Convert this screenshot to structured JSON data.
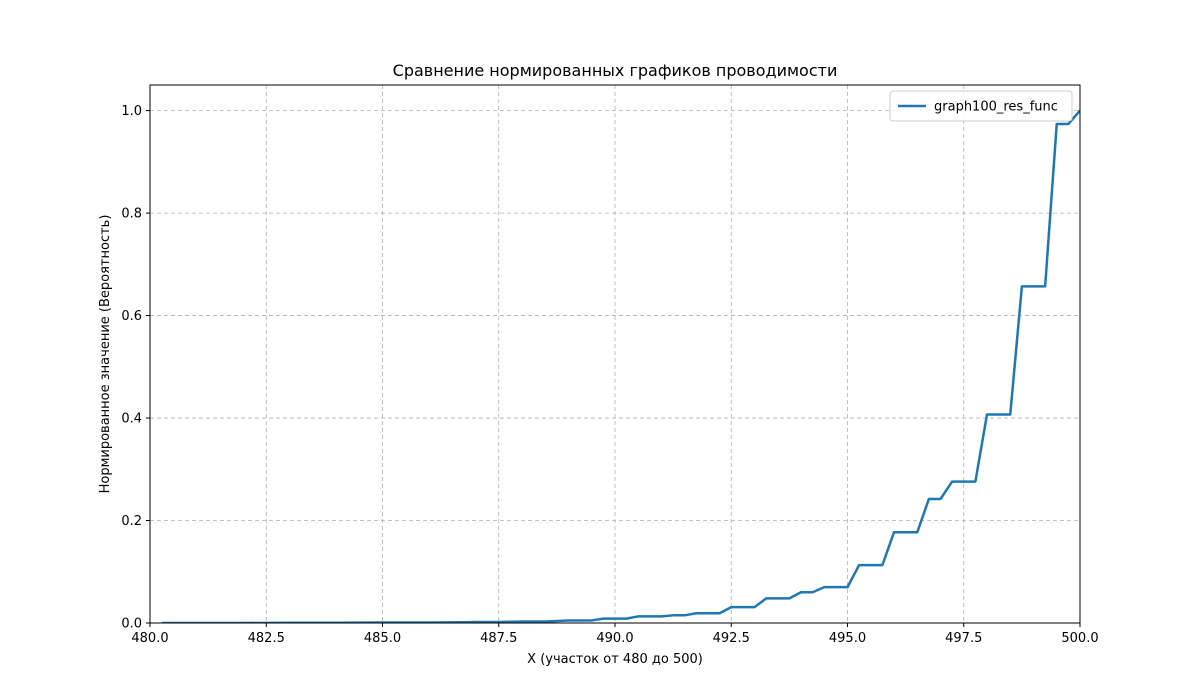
{
  "chart_data": {
    "type": "line",
    "title": "Сравнение нормированных графиков проводимости",
    "xlabel": "X (участок от 480 до 500)",
    "ylabel": "Нормированное значение (Вероятность)",
    "xlim": [
      480,
      500
    ],
    "ylim": [
      0,
      1.05
    ],
    "xticks": [
      "480.0",
      "482.5",
      "485.0",
      "487.5",
      "490.0",
      "492.5",
      "495.0",
      "497.5",
      "500.0"
    ],
    "yticks": [
      "0.0",
      "0.2",
      "0.4",
      "0.6",
      "0.8",
      "1.0"
    ],
    "grid": true,
    "legend_position": "top-right",
    "series": [
      {
        "name": "graph100_res_func",
        "color": "#1f77b4",
        "x": [
          480.25,
          481.0,
          482.0,
          483.0,
          484.0,
          485.0,
          486.0,
          486.75,
          487.0,
          487.5,
          487.75,
          488.0,
          488.5,
          488.75,
          489.0,
          489.5,
          489.75,
          490.0,
          490.25,
          490.5,
          490.75,
          491.0,
          491.25,
          491.5,
          491.75,
          492.0,
          492.25,
          492.5,
          492.75,
          493.0,
          493.25,
          493.5,
          493.75,
          494.0,
          494.25,
          494.5,
          494.75,
          495.0,
          495.25,
          495.5,
          495.75,
          496.0,
          496.25,
          496.5,
          496.75,
          497.0,
          497.25,
          497.5,
          497.75,
          498.0,
          498.25,
          498.5,
          498.75,
          499.0,
          499.25,
          499.5,
          499.75,
          500.0
        ],
        "y": [
          0.0,
          0.0,
          0.0,
          0.0005,
          0.0005,
          0.001,
          0.001,
          0.0015,
          0.002,
          0.002,
          0.0025,
          0.003,
          0.003,
          0.004,
          0.005,
          0.005,
          0.0085,
          0.0085,
          0.0085,
          0.013,
          0.013,
          0.013,
          0.015,
          0.015,
          0.019,
          0.019,
          0.019,
          0.031,
          0.031,
          0.031,
          0.048,
          0.048,
          0.048,
          0.06,
          0.06,
          0.07,
          0.07,
          0.07,
          0.113,
          0.113,
          0.113,
          0.177,
          0.177,
          0.177,
          0.242,
          0.242,
          0.276,
          0.276,
          0.276,
          0.407,
          0.407,
          0.407,
          0.657,
          0.657,
          0.657,
          0.974,
          0.974,
          1.0
        ]
      }
    ]
  }
}
